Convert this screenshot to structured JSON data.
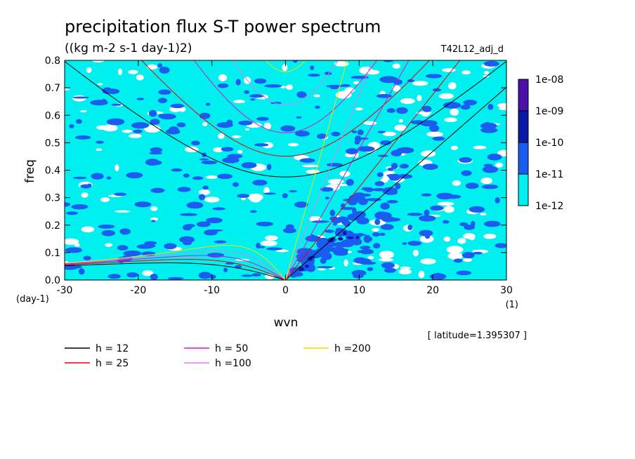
{
  "chart_data": {
    "type": "heatmap",
    "title": "precipitation flux S-T power spectrum",
    "subtitle": "((kg m-2 s-1 day-1)2)",
    "run_label": "T42L12_adj_d",
    "xlabel": "wvn",
    "ylabel": "freq",
    "x_unit": "(1)",
    "y_unit": "(day-1)",
    "xlim": [
      -30,
      30
    ],
    "ylim": [
      0,
      0.8
    ],
    "x_ticks": [
      -30,
      -20,
      -10,
      0,
      10,
      20,
      30
    ],
    "y_ticks": [
      0.0,
      0.1,
      0.2,
      0.3,
      0.4,
      0.5,
      0.6,
      0.7,
      0.8
    ],
    "x_tick_labels": [
      "-30",
      "-20",
      "-10",
      "0",
      "10",
      "20",
      "30"
    ],
    "y_tick_labels": [
      "0.0",
      "0.1",
      "0.2",
      "0.3",
      "0.4",
      "0.5",
      "0.6",
      "0.7",
      "0.8"
    ],
    "colorbar": {
      "labels": [
        "1e-08",
        "1e-09",
        "1e-10",
        "1e-11",
        "1e-12"
      ],
      "colors": [
        "#4a11a8",
        "#0a1aa6",
        "#1a5cf0",
        "#00f0f0"
      ]
    },
    "background_color": "#00f0f0",
    "dispersion_curves": [
      {
        "label": "h = 12",
        "h": 12,
        "color": "#000000"
      },
      {
        "label": "h = 25",
        "h": 25,
        "color": "#e8000a"
      },
      {
        "label": "h = 50",
        "h": 50,
        "color": "#e010c8"
      },
      {
        "label": "h =100",
        "h": 100,
        "color": "#d880e8"
      },
      {
        "label": "h =200",
        "h": 200,
        "color": "#f0e000"
      }
    ],
    "annotation": "[ latitude=1.395307 ]"
  }
}
